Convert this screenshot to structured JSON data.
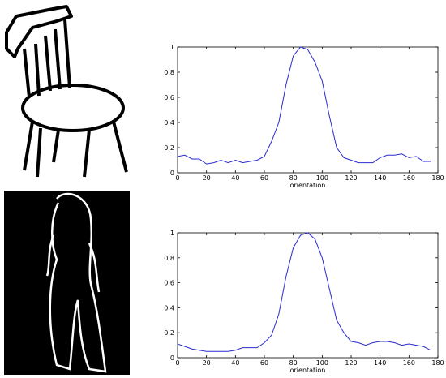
{
  "chart_data": [
    {
      "type": "line",
      "xlabel": "orientation",
      "x": [
        0,
        5,
        10,
        15,
        20,
        25,
        30,
        35,
        40,
        45,
        50,
        55,
        60,
        65,
        70,
        75,
        80,
        85,
        90,
        95,
        100,
        105,
        110,
        115,
        120,
        125,
        130,
        135,
        140,
        145,
        150,
        155,
        160,
        165,
        170,
        175
      ],
      "values": [
        0.13,
        0.14,
        0.11,
        0.11,
        0.07,
        0.08,
        0.1,
        0.08,
        0.1,
        0.08,
        0.09,
        0.1,
        0.13,
        0.25,
        0.4,
        0.7,
        0.93,
        1.0,
        0.98,
        0.88,
        0.73,
        0.45,
        0.2,
        0.12,
        0.1,
        0.08,
        0.08,
        0.08,
        0.12,
        0.14,
        0.14,
        0.15,
        0.12,
        0.13,
        0.09,
        0.09
      ],
      "color": "#2b2bd0",
      "xlim": [
        0,
        180
      ],
      "ylim": [
        0,
        1
      ],
      "xticks": [
        0,
        20,
        40,
        60,
        80,
        100,
        120,
        140,
        160,
        180
      ],
      "yticks": [
        0,
        0.2,
        0.4,
        0.6,
        0.8,
        1
      ]
    },
    {
      "type": "line",
      "xlabel": "orientation",
      "x": [
        0,
        5,
        10,
        15,
        20,
        25,
        30,
        35,
        40,
        45,
        50,
        55,
        60,
        65,
        70,
        75,
        80,
        85,
        90,
        95,
        100,
        105,
        110,
        115,
        120,
        125,
        130,
        135,
        140,
        145,
        150,
        155,
        160,
        165,
        170,
        175
      ],
      "values": [
        0.11,
        0.09,
        0.07,
        0.06,
        0.05,
        0.05,
        0.05,
        0.05,
        0.06,
        0.08,
        0.08,
        0.08,
        0.12,
        0.18,
        0.35,
        0.65,
        0.88,
        0.98,
        1.0,
        0.95,
        0.8,
        0.55,
        0.3,
        0.2,
        0.13,
        0.12,
        0.1,
        0.12,
        0.13,
        0.13,
        0.12,
        0.1,
        0.11,
        0.1,
        0.09,
        0.06
      ],
      "color": "#2b2bd0",
      "xlim": [
        0,
        180
      ],
      "ylim": [
        0,
        1
      ],
      "xticks": [
        0,
        20,
        40,
        60,
        80,
        100,
        120,
        140,
        160,
        180
      ],
      "yticks": [
        0,
        0.2,
        0.4,
        0.6,
        0.8,
        1
      ]
    }
  ]
}
